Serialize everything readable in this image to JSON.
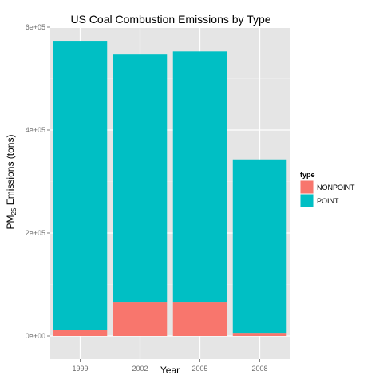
{
  "chart_data": {
    "type": "bar",
    "stacked": true,
    "title": "US Coal Combustion Emissions by Type",
    "xlabel": "Year",
    "ylabel": {
      "prefix": "PM",
      "subscript": "25",
      "suffix": " Emissions (tons)"
    },
    "categories": [
      "1999",
      "2002",
      "2005",
      "2008"
    ],
    "series": [
      {
        "name": "NONPOINT",
        "values": [
          12000,
          65000,
          65000,
          6000
        ],
        "color": "#F8766D"
      },
      {
        "name": "POINT",
        "values": [
          560000,
          482000,
          488000,
          337000
        ],
        "color": "#00BFC4"
      }
    ],
    "ylim": [
      0,
      600000
    ],
    "yticks": [
      0,
      200000,
      400000,
      600000
    ],
    "ytick_labels": [
      "0e+00",
      "2e+05",
      "4e+05",
      "6e+05"
    ],
    "grid": true,
    "panel_background": "#E5E5E5",
    "legend": {
      "title": "type",
      "placement": "right"
    }
  }
}
